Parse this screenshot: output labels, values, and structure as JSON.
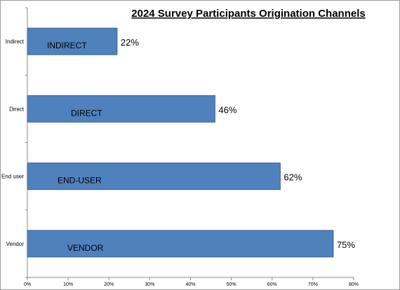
{
  "chart_data": {
    "type": "bar",
    "orientation": "horizontal",
    "title": "2024 Survey Participants Origination Channels",
    "xlabel": "",
    "ylabel": "",
    "categories": [
      "Indirect",
      "Direct",
      "End user",
      "Vendor"
    ],
    "bar_labels": [
      "INDIRECT",
      "DIRECT",
      "END-USER",
      "VENDOR"
    ],
    "values": [
      22,
      46,
      62,
      75
    ],
    "value_labels": [
      "22%",
      "46%",
      "62%",
      "75%"
    ],
    "xlim": [
      0,
      80
    ],
    "x_ticks": [
      "0%",
      "10%",
      "20%",
      "30%",
      "40%",
      "50%",
      "60%",
      "70%",
      "80%"
    ],
    "grid": false,
    "legend": "none",
    "bar_color": "#4f81bd",
    "bar_edge_color": "#3a6696"
  }
}
